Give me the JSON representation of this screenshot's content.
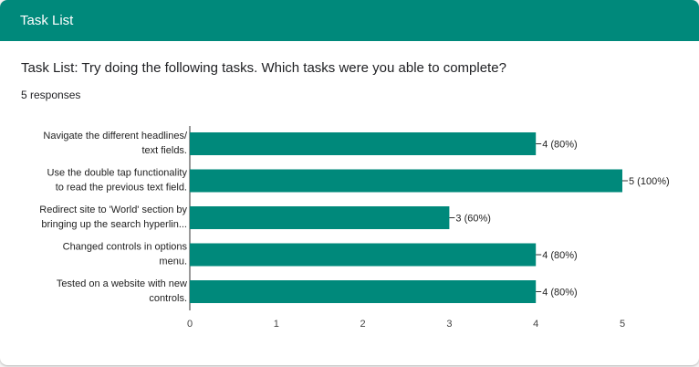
{
  "header": {
    "title": "Task List"
  },
  "question": {
    "text": "Task List: Try doing the following tasks. Which tasks were you able to complete?"
  },
  "responses": {
    "text": "5 responses"
  },
  "colors": {
    "accent": "#00897b",
    "bar": "#00897b"
  },
  "chart_data": {
    "type": "bar",
    "orientation": "horizontal",
    "categories": [
      [
        "Navigate the different headlines/",
        "text fields."
      ],
      [
        "Use the double tap functionality",
        "to read the previous text field."
      ],
      [
        "Redirect site to 'World' section by",
        "bringing up the search hyperlin..."
      ],
      [
        "Changed controls in options",
        "menu."
      ],
      [
        "Tested on a website with new",
        "controls."
      ]
    ],
    "values": [
      4,
      5,
      3,
      4,
      4
    ],
    "value_labels": [
      "4 (80%)",
      "5 (100%)",
      "3 (60%)",
      "4 (80%)",
      "4 (80%)"
    ],
    "xticks": [
      0,
      1,
      2,
      3,
      4,
      5
    ],
    "xlim": [
      0,
      5
    ],
    "grid": false,
    "legend": "none"
  }
}
